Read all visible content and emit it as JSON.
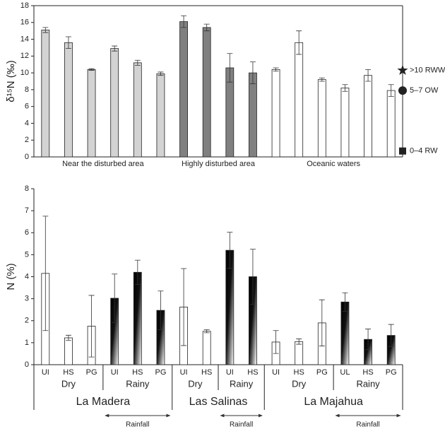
{
  "chart_data": [
    {
      "type": "bar",
      "ylabel": "δ¹⁵N (‰)",
      "ylim": [
        0,
        18
      ],
      "yticks": [
        0,
        2,
        4,
        6,
        8,
        10,
        12,
        14,
        16,
        18
      ],
      "groups": [
        {
          "name": "Near the disturbed area",
          "color": "#d3d3d3",
          "values": [
            15.1,
            13.6,
            10.4,
            12.9,
            11.2,
            9.9
          ],
          "errors": [
            0.3,
            0.7,
            0.1,
            0.3,
            0.3,
            0.2
          ]
        },
        {
          "name": "Highly disturbed area",
          "color": "#808080",
          "values": [
            16.1,
            15.4,
            10.6,
            10.0
          ],
          "errors": [
            0.7,
            0.4,
            1.7,
            1.3
          ]
        },
        {
          "name": "Oceanic waters",
          "color": "#ffffff",
          "values": [
            10.4,
            13.6,
            9.2,
            8.2,
            9.7,
            7.9
          ],
          "errors": [
            0.2,
            1.4,
            0.2,
            0.4,
            0.7,
            0.7
          ]
        }
      ],
      "markers": [
        {
          "label": ">10 RWW",
          "value": 10.3,
          "shape": "star"
        },
        {
          "label": "5–7 OW",
          "value": 7.9,
          "shape": "circle"
        },
        {
          "label": "0–4 RW",
          "value": 0.7,
          "shape": "square"
        }
      ]
    },
    {
      "type": "bar",
      "ylabel": "N (%)",
      "ylim": [
        0,
        8
      ],
      "yticks": [
        0,
        1,
        2,
        3,
        4,
        5,
        6,
        7,
        8
      ],
      "sites": [
        {
          "name": "La Madera",
          "annotation": "Rainfall",
          "seasons": [
            {
              "name": "Dry",
              "style": "plain",
              "categories": [
                "UI",
                "HS",
                "PG"
              ],
              "values": [
                4.15,
                1.22,
                1.75
              ],
              "errors": [
                2.6,
                0.12,
                1.4
              ]
            },
            {
              "name": "Rainy",
              "style": "gradient",
              "categories": [
                "UI",
                "HS",
                "PG"
              ],
              "values": [
                3.02,
                4.2,
                2.47
              ],
              "errors": [
                1.1,
                0.55,
                0.88
              ]
            }
          ]
        },
        {
          "name": "Las Salinas",
          "annotation": "Rainfall",
          "seasons": [
            {
              "name": "Dry",
              "style": "plain",
              "categories": [
                "UI",
                "HS"
              ],
              "values": [
                2.62,
                1.52
              ],
              "errors": [
                1.75,
                0.07
              ]
            },
            {
              "name": "Rainy",
              "style": "gradient",
              "categories": [
                "UI",
                "HS"
              ],
              "values": [
                5.2,
                4.0
              ],
              "errors": [
                0.82,
                1.25
              ]
            }
          ]
        },
        {
          "name": "La Majahua",
          "annotation": "Rainfall",
          "seasons": [
            {
              "name": "Dry",
              "style": "plain",
              "categories": [
                "UI",
                "HS",
                "PG"
              ],
              "values": [
                1.03,
                1.05,
                1.9
              ],
              "errors": [
                0.52,
                0.12,
                1.05
              ]
            },
            {
              "name": "Rainy",
              "style": "gradient",
              "categories": [
                "UL",
                "HS",
                "PG"
              ],
              "values": [
                2.85,
                1.15,
                1.33
              ],
              "errors": [
                0.42,
                0.47,
                0.5
              ]
            }
          ]
        }
      ]
    }
  ]
}
